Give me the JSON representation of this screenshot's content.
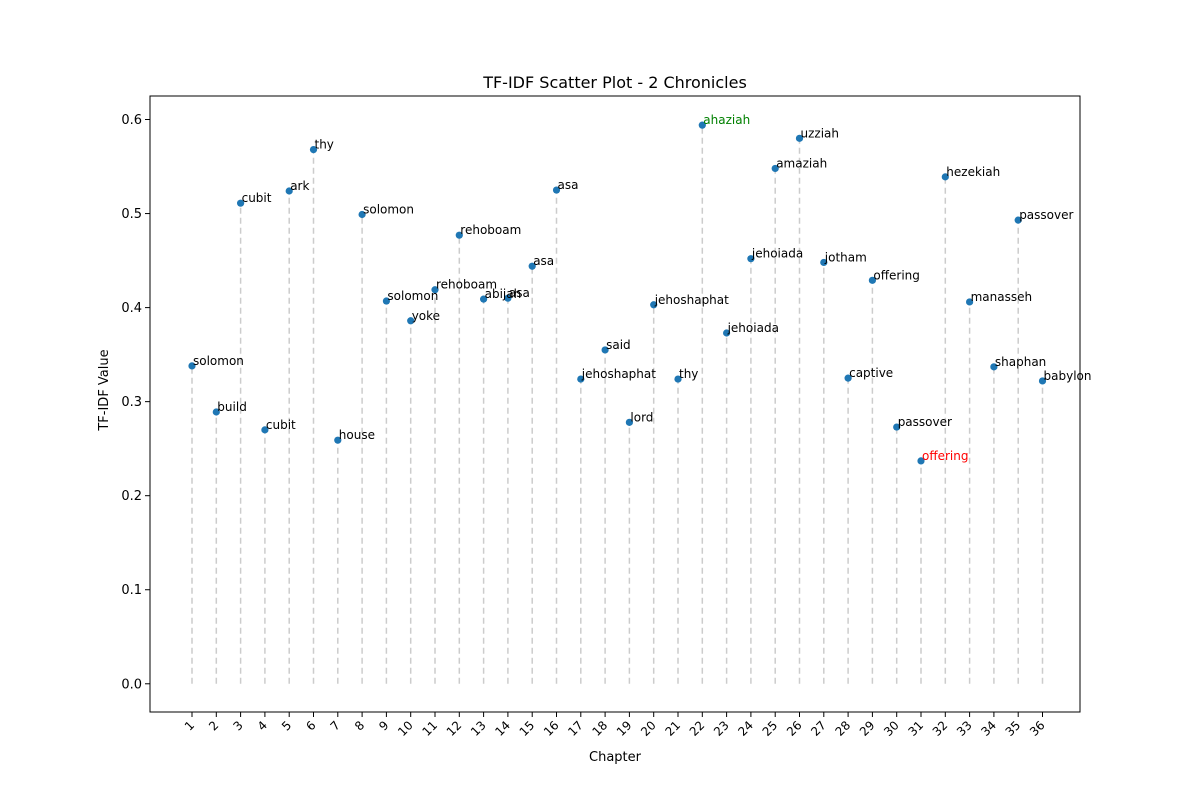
{
  "chart_data": {
    "type": "scatter",
    "title": "TF-IDF Scatter Plot - 2 Chronicles",
    "xlabel": "Chapter",
    "ylabel": "TF-IDF Value",
    "ylim": [
      -0.03,
      0.625
    ],
    "yticks": [
      "0.0",
      "0.1",
      "0.2",
      "0.3",
      "0.4",
      "0.5",
      "0.6"
    ],
    "grid": false,
    "stem_lines": true,
    "point_color": "#1f77b4",
    "stem_color": "#cccccc",
    "highlight_max_color": "#008000",
    "highlight_min_color": "#ff0000",
    "points": [
      {
        "x": 1,
        "y": 0.338,
        "word": "solomon"
      },
      {
        "x": 2,
        "y": 0.289,
        "word": "build"
      },
      {
        "x": 3,
        "y": 0.511,
        "word": "cubit"
      },
      {
        "x": 4,
        "y": 0.27,
        "word": "cubit"
      },
      {
        "x": 5,
        "y": 0.524,
        "word": "ark"
      },
      {
        "x": 6,
        "y": 0.568,
        "word": "thy"
      },
      {
        "x": 7,
        "y": 0.259,
        "word": "house"
      },
      {
        "x": 8,
        "y": 0.499,
        "word": "solomon"
      },
      {
        "x": 9,
        "y": 0.407,
        "word": "solomon"
      },
      {
        "x": 10,
        "y": 0.386,
        "word": "yoke"
      },
      {
        "x": 11,
        "y": 0.419,
        "word": "rehoboam"
      },
      {
        "x": 12,
        "y": 0.477,
        "word": "rehoboam"
      },
      {
        "x": 13,
        "y": 0.409,
        "word": "abijah"
      },
      {
        "x": 14,
        "y": 0.41,
        "word": "asa"
      },
      {
        "x": 15,
        "y": 0.444,
        "word": "asa"
      },
      {
        "x": 16,
        "y": 0.525,
        "word": "asa"
      },
      {
        "x": 17,
        "y": 0.324,
        "word": "jehoshaphat"
      },
      {
        "x": 18,
        "y": 0.355,
        "word": "said"
      },
      {
        "x": 19,
        "y": 0.278,
        "word": "lord"
      },
      {
        "x": 20,
        "y": 0.403,
        "word": "jehoshaphat"
      },
      {
        "x": 21,
        "y": 0.324,
        "word": "thy"
      },
      {
        "x": 22,
        "y": 0.594,
        "word": "ahaziah"
      },
      {
        "x": 23,
        "y": 0.373,
        "word": "jehoiada"
      },
      {
        "x": 24,
        "y": 0.452,
        "word": "jehoiada"
      },
      {
        "x": 25,
        "y": 0.548,
        "word": "amaziah"
      },
      {
        "x": 26,
        "y": 0.58,
        "word": "uzziah"
      },
      {
        "x": 27,
        "y": 0.448,
        "word": "jotham"
      },
      {
        "x": 28,
        "y": 0.325,
        "word": "captive"
      },
      {
        "x": 29,
        "y": 0.429,
        "word": "offering"
      },
      {
        "x": 30,
        "y": 0.273,
        "word": "passover"
      },
      {
        "x": 31,
        "y": 0.237,
        "word": "offering"
      },
      {
        "x": 32,
        "y": 0.539,
        "word": "hezekiah"
      },
      {
        "x": 33,
        "y": 0.406,
        "word": "manasseh"
      },
      {
        "x": 34,
        "y": 0.337,
        "word": "shaphan"
      },
      {
        "x": 35,
        "y": 0.493,
        "word": "passover"
      },
      {
        "x": 36,
        "y": 0.322,
        "word": "babylon"
      }
    ]
  }
}
